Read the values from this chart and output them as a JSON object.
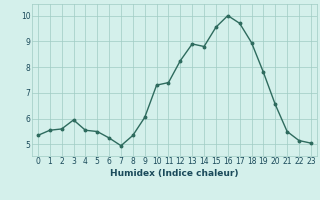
{
  "x": [
    0,
    1,
    2,
    3,
    4,
    5,
    6,
    7,
    8,
    9,
    10,
    11,
    12,
    13,
    14,
    15,
    16,
    17,
    18,
    19,
    20,
    21,
    22,
    23
  ],
  "y": [
    5.35,
    5.55,
    5.6,
    5.95,
    5.55,
    5.5,
    5.25,
    4.95,
    5.35,
    6.05,
    7.3,
    7.4,
    8.25,
    8.9,
    8.8,
    9.55,
    10.0,
    9.7,
    8.95,
    7.8,
    6.55,
    5.5,
    5.15,
    5.05
  ],
  "line_color": "#2e6b5e",
  "marker": "o",
  "markersize": 1.8,
  "linewidth": 1.0,
  "bg_color": "#d4f0eb",
  "grid_color": "#a0ccc4",
  "xlabel": "Humidex (Indice chaleur)",
  "xlabel_fontsize": 6.5,
  "xlabel_bold": true,
  "yticks": [
    5,
    6,
    7,
    8,
    9,
    10
  ],
  "xticks": [
    0,
    1,
    2,
    3,
    4,
    5,
    6,
    7,
    8,
    9,
    10,
    11,
    12,
    13,
    14,
    15,
    16,
    17,
    18,
    19,
    20,
    21,
    22,
    23
  ],
  "ylim": [
    4.55,
    10.45
  ],
  "xlim": [
    -0.5,
    23.5
  ],
  "tick_fontsize": 5.5,
  "tick_color": "#1a4a5a"
}
